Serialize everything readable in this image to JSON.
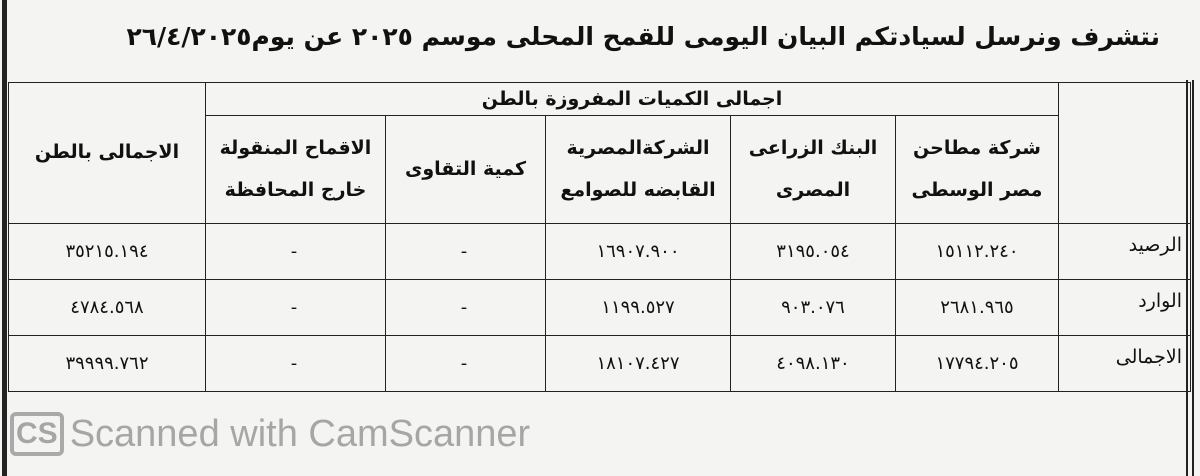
{
  "title": "نتشرف ونرسل لسيادتكم البيان اليومى للقمح المحلى موسم ٢٠٢٥ عن يوم٢٦/٤/٢٠٢٥",
  "table": {
    "group_header": "اجمالى الكميات المفروزة بالطن",
    "columns": [
      {
        "line1": "شركة مطاحن",
        "line2": "مصر الوسطى"
      },
      {
        "line1": "البنك الزراعى",
        "line2": "المصرى"
      },
      {
        "line1": "الشركةالمصرية",
        "line2": "القابضه للصوامع"
      },
      {
        "line1": "كمية التقاوى",
        "line2": ""
      },
      {
        "line1": "الاقماح المنقولة",
        "line2": "خارج المحافظة"
      },
      {
        "line1": "الاجمالى بالطن",
        "line2": ""
      }
    ],
    "rows": [
      {
        "label": "الرصيد",
        "values": [
          "١٥١١٢.٢٤٠",
          "٣١٩٥.٠٥٤",
          "١٦٩٠٧.٩٠٠",
          "-",
          "-",
          "٣٥٢١٥.١٩٤"
        ]
      },
      {
        "label": "الوارد",
        "values": [
          "٢٦٨١.٩٦٥",
          "٩٠٣.٠٧٦",
          "١١٩٩.٥٢٧",
          "-",
          "-",
          "٤٧٨٤.٥٦٨"
        ]
      },
      {
        "label": "الاجمالى",
        "values": [
          "١٧٧٩٤.٢٠٥",
          "٤٠٩٨.١٣٠",
          "١٨١٠٧.٤٢٧",
          "-",
          "-",
          "٣٩٩٩٩.٧٦٢"
        ]
      }
    ]
  },
  "watermark": {
    "logo": "CS",
    "text": "Scanned with CamScanner"
  }
}
